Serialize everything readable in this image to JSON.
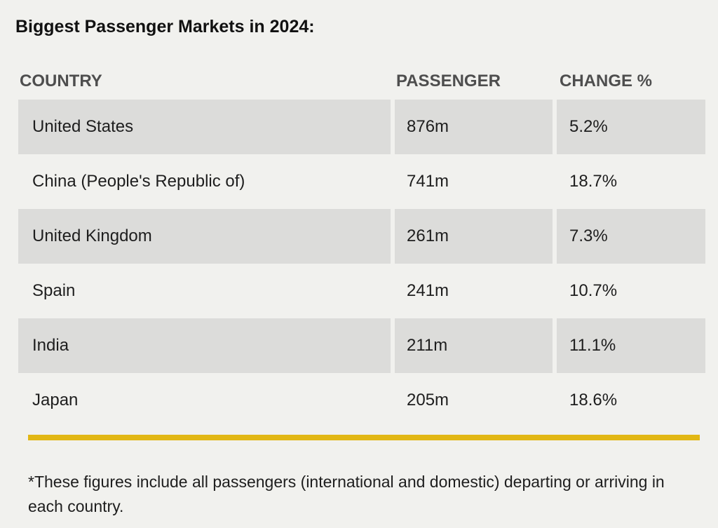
{
  "chart_data": {
    "type": "table",
    "title": "Biggest Passenger Markets in 2024:",
    "columns": [
      "COUNTRY",
      "PASSENGER",
      "CHANGE %"
    ],
    "rows": [
      {
        "country": "United States",
        "passengers": "876m",
        "change": "5.2%"
      },
      {
        "country": "China (People's Republic of)",
        "passengers": "741m",
        "change": "18.7%"
      },
      {
        "country": "United Kingdom",
        "passengers": "261m",
        "change": "7.3%"
      },
      {
        "country": "Spain",
        "passengers": "241m",
        "change": "10.7%"
      },
      {
        "country": "India",
        "passengers": "211m",
        "change": "11.1%"
      },
      {
        "country": "Japan",
        "passengers": "205m",
        "change": "18.6%"
      }
    ],
    "footnote": "*These figures include all passengers (international and domestic) departing or arriving in each country."
  },
  "colors": {
    "accent_rule": "#e2b714",
    "shaded_row": "#dcdcda",
    "background": "#f1f1ee"
  }
}
